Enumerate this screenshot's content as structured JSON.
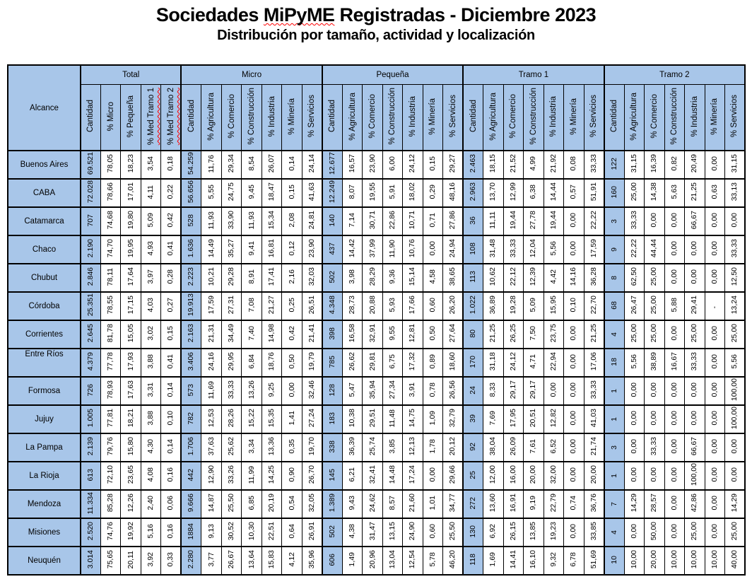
{
  "header": {
    "title_parts": [
      {
        "text": "Sociedades "
      },
      {
        "text": "MiPyME",
        "misspelled": true
      },
      {
        "text": " Registradas - Diciembre 2023"
      }
    ],
    "subtitle": "Distribución por tamaño, actividad y localización"
  },
  "colors": {
    "header_bg": "#a8c6e9",
    "border": "#000000",
    "spellcheck_underline": "#ff0000"
  },
  "table": {
    "corner_header": "Alcance",
    "groups": [
      {
        "label": "Total",
        "columns": [
          {
            "label": "Cantidad"
          },
          {
            "label": "% Micro"
          },
          {
            "label": "% Pequeña"
          },
          {
            "label": "% Med Tramo 1",
            "misspelled": true
          },
          {
            "label": "% Med Tramo 2",
            "misspelled": true
          }
        ]
      },
      {
        "label": "Micro",
        "columns": [
          {
            "label": "Cantidad"
          },
          {
            "label": "% Agricultura"
          },
          {
            "label": "% Comercio"
          },
          {
            "label": "% Construcción"
          },
          {
            "label": "% Industria"
          },
          {
            "label": "% Minería"
          },
          {
            "label": "% Servicios"
          }
        ]
      },
      {
        "label": "Pequeña",
        "columns": [
          {
            "label": "Cantidad"
          },
          {
            "label": "% Agricultura"
          },
          {
            "label": "% Comercio"
          },
          {
            "label": "% Construcción"
          },
          {
            "label": "% Industria"
          },
          {
            "label": "% Minería"
          },
          {
            "label": "% Servicios"
          }
        ]
      },
      {
        "label": "Tramo 1",
        "columns": [
          {
            "label": "Cantidad"
          },
          {
            "label": "% Agricultura"
          },
          {
            "label": "% Comercio"
          },
          {
            "label": "% Construcción"
          },
          {
            "label": "% Industria"
          },
          {
            "label": "% Minería"
          },
          {
            "label": "% Servicios"
          }
        ]
      },
      {
        "label": "Tramo 2",
        "columns": [
          {
            "label": "Cantidad"
          },
          {
            "label": "% Agricultura"
          },
          {
            "label": "% Comercio"
          },
          {
            "label": "% Construcción"
          },
          {
            "label": "% Industria"
          },
          {
            "label": "% Minería"
          },
          {
            "label": "% Servicios"
          }
        ]
      }
    ],
    "rows": [
      {
        "alcance": "Buenos Aires",
        "values": [
          "69.521",
          "78,05",
          "18,23",
          "3,54",
          "0,18",
          "54.259",
          "11,76",
          "29,34",
          "8,54",
          "26,07",
          "0,14",
          "24,14",
          "12.677",
          "16,57",
          "23,90",
          "6,00",
          "24,12",
          "0,15",
          "29,27",
          "2.463",
          "18,15",
          "21,52",
          "4,99",
          "21,92",
          "0,08",
          "33,33",
          "122",
          "31,15",
          "16,39",
          "0,82",
          "20,49",
          "0,00",
          "31,15"
        ]
      },
      {
        "alcance": "CABA",
        "values": [
          "72.028",
          "78,66",
          "17,01",
          "4,11",
          "0,22",
          "56.656",
          "5,55",
          "24,75",
          "9,45",
          "18,47",
          "0,15",
          "41,63",
          "12.249",
          "8,07",
          "19,55",
          "5,91",
          "18,02",
          "0,29",
          "48,16",
          "2.963",
          "13,70",
          "12,99",
          "6,38",
          "14,44",
          "0,57",
          "51,91",
          "160",
          "25,00",
          "14,38",
          "5,63",
          "21,25",
          "0,63",
          "33,13"
        ]
      },
      {
        "alcance": "Catamarca",
        "values": [
          "707",
          "74,68",
          "19,80",
          "5,09",
          "0,42",
          "528",
          "11,93",
          "33,90",
          "11,93",
          "15,34",
          "2,08",
          "24,81",
          "140",
          "7,14",
          "30,71",
          "22,86",
          "10,71",
          "0,71",
          "27,86",
          "36",
          "11,11",
          "19,44",
          "27,78",
          "19,44",
          "0,00",
          "22,22",
          "3",
          "33,33",
          "0,00",
          "0,00",
          "66,67",
          "0,00",
          "0,00"
        ]
      },
      {
        "alcance": "Chaco",
        "values": [
          "2.190",
          "74,70",
          "19,95",
          "4,93",
          "0,41",
          "1.636",
          "14,49",
          "35,27",
          "9,41",
          "16,81",
          "0,12",
          "23,90",
          "437",
          "14,42",
          "37,99",
          "11,90",
          "10,76",
          "0,00",
          "24,94",
          "108",
          "31,48",
          "33,33",
          "12,04",
          "5,56",
          "0,00",
          "17,59",
          "9",
          "22,22",
          "44,44",
          "0,00",
          "0,00",
          "0,00",
          "33,33"
        ]
      },
      {
        "alcance": "Chubut",
        "values": [
          "2.846",
          "78,11",
          "17,64",
          "3,97",
          "0,28",
          "2.223",
          "10,21",
          "29,28",
          "8,91",
          "17,41",
          "2,16",
          "32,03",
          "502",
          "3,98",
          "28,29",
          "9,36",
          "15,14",
          "4,58",
          "38,65",
          "113",
          "10,62",
          "22,12",
          "12,39",
          "4,42",
          "14,16",
          "36,28",
          "8",
          "62,50",
          "25,00",
          "0,00",
          "0,00",
          "0,00",
          "12,50"
        ]
      },
      {
        "alcance": "Córdoba",
        "values": [
          "25.351",
          "78,55",
          "17,15",
          "4,03",
          "0,27",
          "19.913",
          "17,59",
          "27,31",
          "7,08",
          "21,27",
          "0,25",
          "26,51",
          "4.348",
          "28,73",
          "20,88",
          "5,93",
          "17,66",
          "0,60",
          "26,20",
          "1.022",
          "36,89",
          "19,28",
          "5,09",
          "15,95",
          "0,10",
          "22,70",
          "68",
          "26,47",
          "25,00",
          "5,88",
          "29,41",
          "-",
          "13,24"
        ]
      },
      {
        "alcance": "Corrientes",
        "values": [
          "2.645",
          "81,78",
          "15,05",
          "3,02",
          "0,15",
          "2.163",
          "21,31",
          "34,49",
          "7,40",
          "14,98",
          "0,42",
          "21,41",
          "398",
          "16,58",
          "32,91",
          "9,55",
          "12,81",
          "0,50",
          "27,64",
          "80",
          "21,25",
          "26,25",
          "7,50",
          "23,75",
          "0,00",
          "21,25",
          "4",
          "25,00",
          "25,00",
          "0,00",
          "25,00",
          "0,00",
          "25,00"
        ]
      },
      {
        "alcance": "Entre Ríos",
        "valign": "top",
        "values": [
          "4.379",
          "77,78",
          "17,93",
          "3,88",
          "0,41",
          "3.406",
          "24,16",
          "29,95",
          "6,84",
          "18,76",
          "0,50",
          "19,79",
          "785",
          "26,62",
          "29,81",
          "6,75",
          "17,32",
          "0,89",
          "18,60",
          "170",
          "31,18",
          "24,12",
          "4,71",
          "22,94",
          "0,00",
          "17,06",
          "18",
          "5,56",
          "38,89",
          "16,67",
          "33,33",
          "0,00",
          "5,56"
        ]
      },
      {
        "alcance": "Formosa",
        "values": [
          "726",
          "78,93",
          "17,63",
          "3,31",
          "0,14",
          "573",
          "11,69",
          "33,33",
          "13,26",
          "9,25",
          "0,00",
          "32,46",
          "128",
          "5,47",
          "35,94",
          "27,34",
          "3,91",
          "0,78",
          "26,56",
          "24",
          "8,33",
          "29,17",
          "29,17",
          "0,00",
          "0,00",
          "33,33",
          "1",
          "0,00",
          "0,00",
          "0,00",
          "0,00",
          "0,00",
          "100,00"
        ]
      },
      {
        "alcance": "Jujuy",
        "values": [
          "1.005",
          "77,81",
          "18,21",
          "3,88",
          "0,10",
          "782",
          "12,53",
          "28,26",
          "15,22",
          "15,35",
          "1,41",
          "27,24",
          "183",
          "10,38",
          "29,51",
          "11,48",
          "14,75",
          "1,09",
          "32,79",
          "39",
          "7,69",
          "17,95",
          "20,51",
          "12,82",
          "0,00",
          "41,03",
          "1",
          "0,00",
          "0,00",
          "0,00",
          "0,00",
          "0,00",
          "100,00"
        ]
      },
      {
        "alcance": "La Pampa",
        "values": [
          "2.139",
          "79,76",
          "15,80",
          "4,30",
          "0,14",
          "1.706",
          "37,63",
          "25,62",
          "3,34",
          "13,36",
          "0,35",
          "19,70",
          "338",
          "36,39",
          "25,74",
          "3,85",
          "12,13",
          "1,78",
          "20,12",
          "92",
          "38,04",
          "26,09",
          "7,61",
          "6,52",
          "0,00",
          "21,74",
          "3",
          "0,00",
          "33,33",
          "0,00",
          "66,67",
          "0,00",
          "0,00"
        ]
      },
      {
        "alcance": "La Rioja",
        "values": [
          "613",
          "72,10",
          "23,65",
          "4,08",
          "0,16",
          "442",
          "12,90",
          "33,26",
          "11,99",
          "14,25",
          "0,90",
          "26,70",
          "145",
          "6,21",
          "32,41",
          "14,48",
          "17,24",
          "0,00",
          "29,66",
          "25",
          "12,00",
          "16,00",
          "20,00",
          "32,00",
          "0,00",
          "20,00",
          "1",
          "0,00",
          "0,00",
          "0,00",
          "100,00",
          "0,00",
          "0,00"
        ]
      },
      {
        "alcance": "Mendoza",
        "values": [
          "11.334",
          "85,28",
          "12,26",
          "2,40",
          "0,06",
          "9.666",
          "14,87",
          "25,50",
          "6,85",
          "20,19",
          "0,54",
          "32,05",
          "1.389",
          "9,43",
          "24,62",
          "8,57",
          "21,60",
          "1,01",
          "34,77",
          "272",
          "13,60",
          "16,91",
          "9,19",
          "22,79",
          "0,74",
          "36,76",
          "7",
          "14,29",
          "28,57",
          "0,00",
          "42,86",
          "0,00",
          "14,29"
        ]
      },
      {
        "alcance": "Misiones",
        "values": [
          "2.520",
          "74,76",
          "19,92",
          "5,16",
          "0,16",
          "1884",
          "9,13",
          "30,52",
          "10,30",
          "22,51",
          "0,64",
          "26,91",
          "502",
          "4,38",
          "31,47",
          "13,15",
          "24,90",
          "0,60",
          "25,50",
          "130",
          "6,92",
          "26,15",
          "13,85",
          "19,23",
          "0,00",
          "33,85",
          "4",
          "0,00",
          "50,00",
          "0,00",
          "25,00",
          "0,00",
          "25,00"
        ]
      },
      {
        "alcance": "Neuquén",
        "values": [
          "3.014",
          "75,65",
          "20,11",
          "3,92",
          "0,33",
          "2.280",
          "3,77",
          "26,67",
          "13,64",
          "15,83",
          "4,12",
          "35,96",
          "606",
          "1,49",
          "20,96",
          "13,04",
          "12,54",
          "5,78",
          "46,20",
          "118",
          "1,69",
          "14,41",
          "16,10",
          "9,32",
          "6,78",
          "51,69",
          "10",
          "10,00",
          "20,00",
          "10,00",
          "10,00",
          "10,00",
          "40,00"
        ]
      }
    ]
  }
}
